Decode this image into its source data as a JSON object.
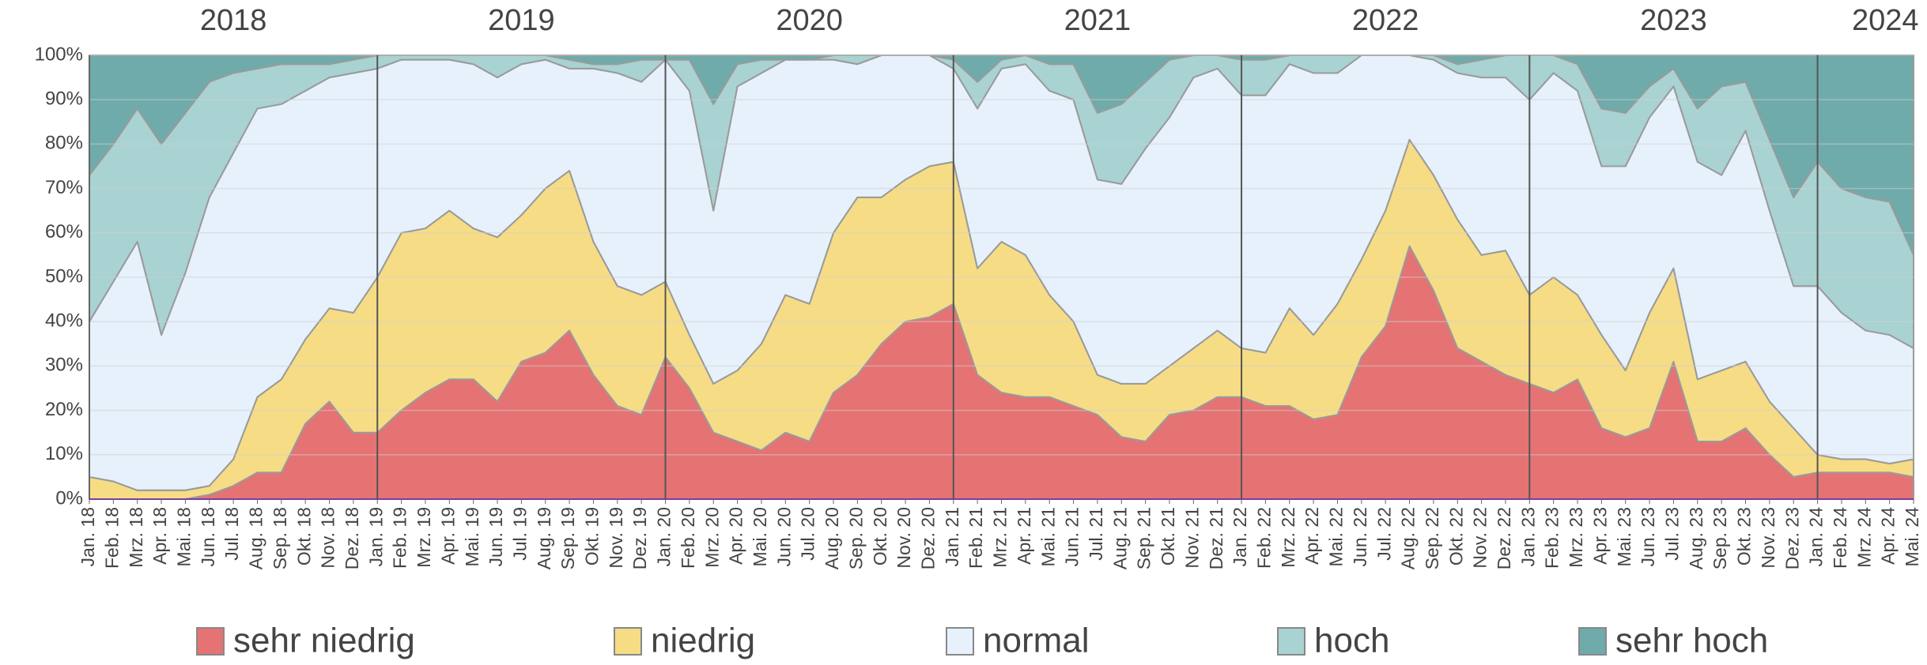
{
  "chart_data": {
    "type": "stacked-area-percent",
    "years": [
      "2018",
      "2019",
      "2020",
      "2021",
      "2022",
      "2023",
      "2024"
    ],
    "categories": [
      "Jan. 18",
      "Feb. 18",
      "Mrz. 18",
      "Apr. 18",
      "Mai. 18",
      "Jun. 18",
      "Jul. 18",
      "Aug. 18",
      "Sep. 18",
      "Okt. 18",
      "Nov. 18",
      "Dez. 18",
      "Jan. 19",
      "Feb. 19",
      "Mrz. 19",
      "Apr. 19",
      "Mai. 19",
      "Jun. 19",
      "Jul. 19",
      "Aug. 19",
      "Sep. 19",
      "Okt. 19",
      "Nov. 19",
      "Dez. 19",
      "Jan. 20",
      "Feb. 20",
      "Mrz. 20",
      "Apr. 20",
      "Mai. 20",
      "Jun. 20",
      "Jul. 20",
      "Aug. 20",
      "Sep. 20",
      "Okt. 20",
      "Nov. 20",
      "Dez. 20",
      "Jan. 21",
      "Feb. 21",
      "Mrz. 21",
      "Apr. 21",
      "Mai. 21",
      "Jun. 21",
      "Jul. 21",
      "Aug. 21",
      "Sep. 21",
      "Okt. 21",
      "Nov. 21",
      "Dez. 21",
      "Jan. 22",
      "Feb. 22",
      "Mrz. 22",
      "Apr. 22",
      "Mai. 22",
      "Jun. 22",
      "Jul. 22",
      "Aug. 22",
      "Sep. 22",
      "Okt. 22",
      "Nov. 22",
      "Dez. 22",
      "Jan. 23",
      "Feb. 23",
      "Mrz. 23",
      "Apr. 23",
      "Mai. 23",
      "Jun. 23",
      "Jul. 23",
      "Aug. 23",
      "Sep. 23",
      "Okt. 23",
      "Nov. 23",
      "Dez. 23",
      "Jan. 24",
      "Feb. 24",
      "Mrz. 24",
      "Apr. 24",
      "Mai. 24"
    ],
    "series": [
      {
        "name": "sehr niedrig",
        "color": "#e57373",
        "values": [
          0,
          0,
          0,
          0,
          0,
          1,
          3,
          6,
          6,
          17,
          22,
          15,
          15,
          20,
          24,
          27,
          27,
          22,
          31,
          33,
          38,
          28,
          21,
          19,
          32,
          25,
          15,
          13,
          11,
          15,
          13,
          24,
          28,
          35,
          40,
          41,
          44,
          28,
          24,
          23,
          23,
          21,
          19,
          14,
          13,
          19,
          20,
          23,
          23,
          21,
          21,
          18,
          19,
          32,
          39,
          57,
          47,
          34,
          31,
          28,
          26,
          24,
          27,
          16,
          14,
          16,
          31,
          13,
          13,
          16,
          10,
          5,
          6,
          6,
          6,
          6,
          5
        ]
      },
      {
        "name": "niedrig",
        "color": "#f6dc85",
        "values": [
          5,
          4,
          2,
          2,
          2,
          2,
          6,
          17,
          21,
          19,
          21,
          27,
          35,
          40,
          37,
          38,
          34,
          37,
          33,
          37,
          36,
          30,
          27,
          27,
          17,
          12,
          11,
          16,
          24,
          31,
          31,
          36,
          40,
          33,
          32,
          34,
          32,
          24,
          34,
          32,
          23,
          19,
          9,
          12,
          13,
          11,
          14,
          15,
          11,
          12,
          22,
          19,
          25,
          22,
          26,
          24,
          26,
          29,
          24,
          28,
          20,
          26,
          19,
          21,
          15,
          26,
          21,
          14,
          16,
          15,
          12,
          11,
          4,
          3,
          3,
          2,
          4
        ]
      },
      {
        "name": "normal",
        "color": "#e6f1fc",
        "values": [
          35,
          45,
          56,
          35,
          49,
          65,
          69,
          65,
          62,
          56,
          52,
          54,
          47,
          39,
          38,
          34,
          37,
          36,
          34,
          29,
          23,
          39,
          48,
          48,
          50,
          55,
          39,
          64,
          61,
          53,
          55,
          39,
          30,
          32,
          28,
          25,
          21,
          36,
          39,
          43,
          46,
          50,
          44,
          45,
          53,
          56,
          61,
          59,
          57,
          58,
          55,
          59,
          52,
          46,
          35,
          19,
          26,
          33,
          40,
          39,
          44,
          46,
          46,
          38,
          46,
          44,
          41,
          49,
          44,
          52,
          43,
          32,
          38,
          33,
          29,
          29,
          25
        ]
      },
      {
        "name": "hoch",
        "color": "#a9d2d2",
        "values": [
          33,
          31,
          30,
          43,
          36,
          26,
          18,
          9,
          9,
          6,
          3,
          3,
          3,
          1,
          1,
          1,
          2,
          5,
          2,
          1,
          2,
          1,
          2,
          5,
          0,
          7,
          24,
          5,
          3,
          0,
          0,
          1,
          2,
          0,
          0,
          0,
          2,
          6,
          2,
          2,
          6,
          8,
          15,
          18,
          15,
          13,
          5,
          3,
          8,
          8,
          2,
          4,
          4,
          0,
          0,
          0,
          1,
          2,
          4,
          5,
          10,
          4,
          6,
          13,
          12,
          7,
          4,
          12,
          20,
          11,
          16,
          20,
          28,
          28,
          30,
          30,
          21
        ]
      },
      {
        "name": "sehr hoch",
        "color": "#6fabab",
        "values": [
          27,
          20,
          12,
          20,
          13,
          6,
          4,
          3,
          2,
          2,
          2,
          1,
          0,
          0,
          0,
          0,
          0,
          0,
          0,
          0,
          1,
          2,
          2,
          1,
          1,
          1,
          11,
          2,
          1,
          1,
          1,
          0,
          0,
          0,
          0,
          0,
          1,
          6,
          1,
          0,
          2,
          2,
          13,
          11,
          6,
          1,
          0,
          0,
          1,
          1,
          0,
          0,
          0,
          0,
          0,
          0,
          0,
          2,
          1,
          0,
          0,
          0,
          2,
          12,
          13,
          7,
          3,
          12,
          7,
          6,
          19,
          32,
          24,
          30,
          32,
          33,
          45
        ]
      }
    ],
    "ylim": [
      0,
      100
    ],
    "yticks": [
      {
        "value": 0,
        "label": "0%"
      },
      {
        "value": 10,
        "label": "10%"
      },
      {
        "value": 20,
        "label": "20%"
      },
      {
        "value": 30,
        "label": "30%"
      },
      {
        "value": 40,
        "label": "40%"
      },
      {
        "value": 50,
        "label": "50%"
      },
      {
        "value": 60,
        "label": "60%"
      },
      {
        "value": 70,
        "label": "70%"
      },
      {
        "value": 80,
        "label": "80%"
      },
      {
        "value": 90,
        "label": "90%"
      },
      {
        "value": 100,
        "label": "100%"
      }
    ],
    "grid": true,
    "legend": "bottom"
  }
}
